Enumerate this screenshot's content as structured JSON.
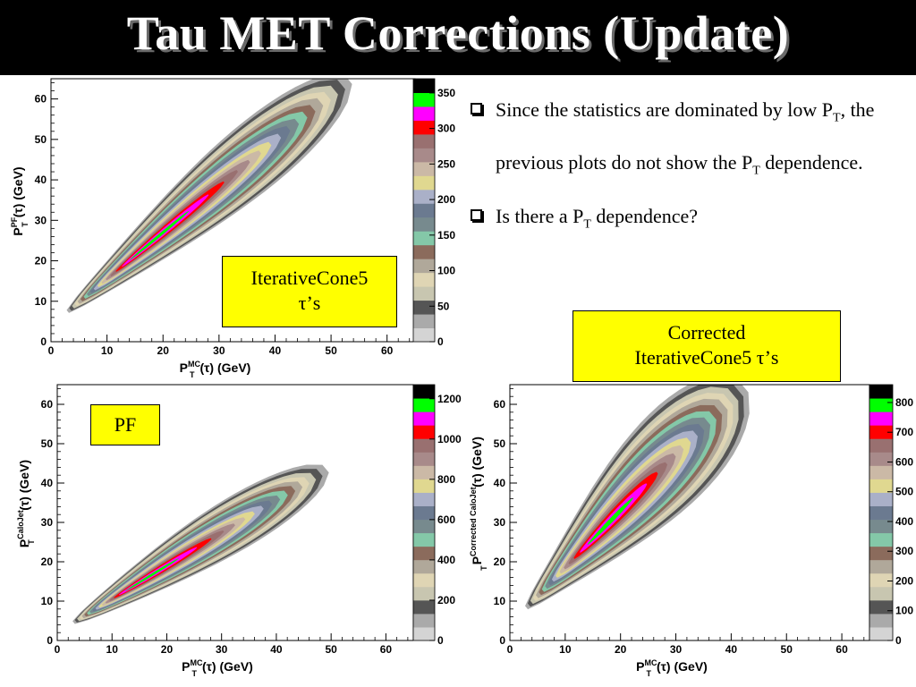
{
  "title": "Tau MET Corrections (Update)",
  "bullets": [
    {
      "text_a": "Since the statistics are dominated by low P",
      "sub1": "T",
      "text_b": ", the previous plots do not show the P",
      "sub2": "T",
      "text_c": " dependence."
    },
    {
      "text_a": "Is there a P",
      "sub1": "T",
      "text_b": " dependence?"
    }
  ],
  "callouts": {
    "iterative": {
      "line1": "IterativeCone5",
      "line2": "τ’s"
    },
    "pf": {
      "line1": "PF"
    },
    "corrected": {
      "line1": "Corrected",
      "line2": "IterativeCone5 τ’s"
    }
  },
  "colors": {
    "palette": [
      "#d4d4d4",
      "#aaaaaa",
      "#555555",
      "#c8c6b0",
      "#dfd5b4",
      "#b0a89a",
      "#8b6b5c",
      "#84c8a8",
      "#778a8e",
      "#6b7a90",
      "#aab0c8",
      "#e0d890",
      "#cbb9a6",
      "#a88a8a",
      "#997070",
      "#ff0000",
      "#ff00ff",
      "#00ff00",
      "#000000"
    ]
  },
  "chart_data": [
    {
      "type": "heatmap",
      "title": "",
      "xlabel_main": "P",
      "xlabel_sup": "MC",
      "xlabel_sub": "T",
      "xlabel_rest": "(τ) (GeV)",
      "ylabel_main": "P",
      "ylabel_sup": "PF",
      "ylabel_sub": "T",
      "ylabel_rest": "(τ) (GeV)",
      "xlim": [
        0,
        65
      ],
      "ylim": [
        0,
        65
      ],
      "x_ticks": [
        0,
        10,
        20,
        30,
        40,
        50,
        60
      ],
      "y_ticks": [
        0,
        10,
        20,
        30,
        40,
        50,
        60
      ],
      "z_ticks": [
        "0",
        "50",
        "100",
        "150",
        "200",
        "250",
        "300",
        "350"
      ],
      "zmax": 370,
      "ridge": {
        "x_start": 3,
        "x_end": 53,
        "slope": 1.15,
        "offset": 4,
        "width_start": 2.5,
        "width_end": 9,
        "peak_x": 17
      }
    },
    {
      "type": "heatmap",
      "title": "",
      "xlabel_main": "P",
      "xlabel_sup": "MC",
      "xlabel_sub": "T",
      "xlabel_rest": "(τ) (GeV)",
      "ylabel_main": "P",
      "ylabel_sup": "CaloJet",
      "ylabel_sub": "T",
      "ylabel_rest": "(τ) (GeV)",
      "xlim": [
        0,
        65
      ],
      "ylim": [
        0,
        65
      ],
      "x_ticks": [
        0,
        10,
        20,
        30,
        40,
        50,
        60
      ],
      "y_ticks": [
        0,
        10,
        20,
        30,
        40,
        50,
        60
      ],
      "z_ticks": [
        "0",
        "200",
        "400",
        "600",
        "800",
        "1000",
        "1200"
      ],
      "zmax": 1270,
      "ridge": {
        "x_start": 3,
        "x_end": 49,
        "slope": 0.85,
        "offset": 2,
        "width_start": 2.5,
        "width_end": 7,
        "peak_x": 15
      }
    },
    {
      "type": "heatmap",
      "title": "",
      "xlabel_main": "P",
      "xlabel_sup": "MC",
      "xlabel_sub": "T",
      "xlabel_rest": "(τ) (GeV)",
      "ylabel_main": "P",
      "ylabel_sup": "Corrected CaloJet",
      "ylabel_sub": "T",
      "ylabel_rest": "(τ) (GeV)",
      "xlim": [
        0,
        65
      ],
      "ylim": [
        0,
        65
      ],
      "x_ticks": [
        0,
        10,
        20,
        30,
        40,
        50,
        60
      ],
      "y_ticks": [
        0,
        10,
        20,
        30,
        40,
        50,
        60
      ],
      "z_ticks": [
        "0",
        "100",
        "200",
        "300",
        "400",
        "500",
        "600",
        "700",
        "800"
      ],
      "zmax": 860,
      "ridge": {
        "x_start": 3,
        "x_end": 42,
        "slope": 1.45,
        "offset": 4,
        "width_start": 3,
        "width_end": 13,
        "peak_x": 17
      }
    }
  ]
}
